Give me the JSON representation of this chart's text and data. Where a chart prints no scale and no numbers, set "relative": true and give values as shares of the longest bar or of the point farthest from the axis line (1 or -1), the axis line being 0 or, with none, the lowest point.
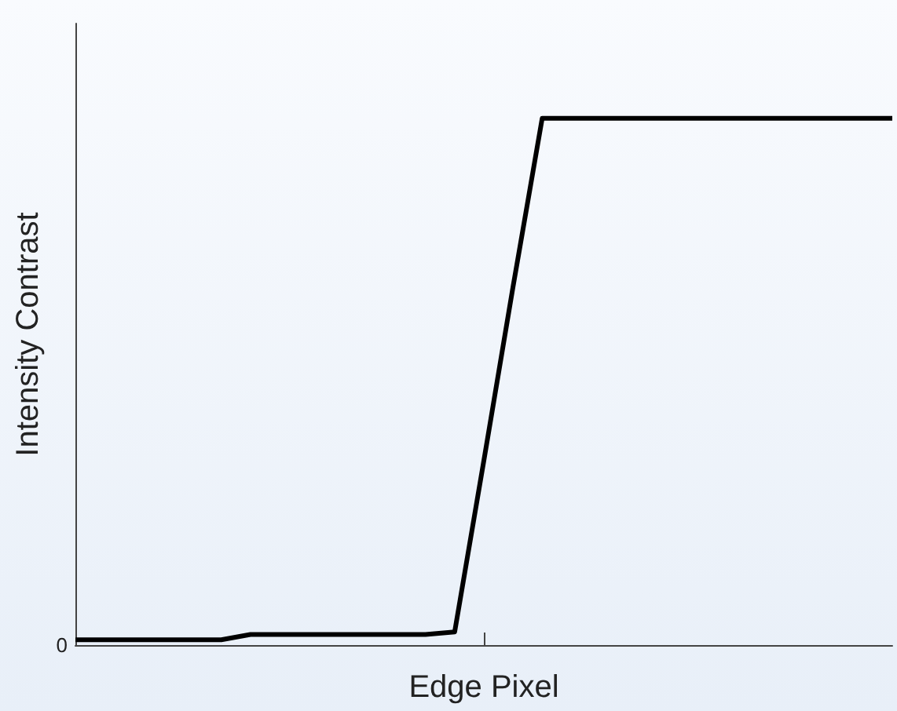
{
  "chart_data": {
    "type": "line",
    "relative": true,
    "xlabel": "Edge Pixel",
    "ylabel": "Intensity Contrast",
    "categories": [
      null,
      null,
      null,
      null,
      null,
      null,
      null,
      null,
      null,
      null,
      null,
      null,
      null,
      null,
      null,
      null,
      null,
      null,
      null,
      null,
      null,
      null,
      null,
      null,
      null,
      null,
      null,
      null,
      null
    ],
    "values": [
      0.01,
      0.01,
      0.01,
      0.01,
      0.01,
      0.01,
      0.02,
      0.02,
      0.02,
      0.02,
      0.02,
      0.02,
      0.02,
      0.025,
      0.35,
      0.68,
      1,
      1,
      1,
      1,
      1,
      1,
      1,
      1,
      1,
      1,
      1,
      1,
      1
    ],
    "color": "#000000",
    "annotations": [
      "0"
    ],
    "grid": false,
    "marker": "none",
    "line_style": "solid"
  }
}
